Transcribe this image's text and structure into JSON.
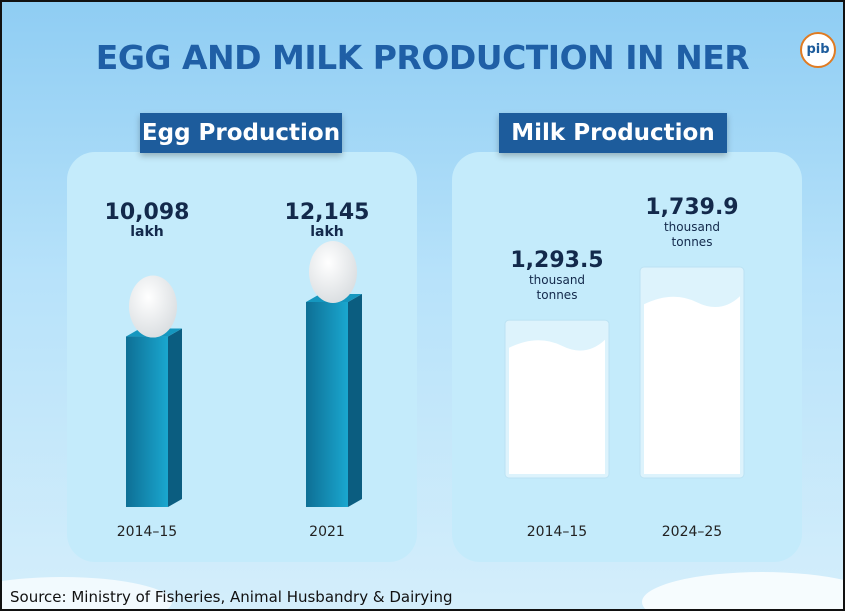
{
  "title": "EGG AND MILK PRODUCTION IN NER",
  "logo": "pib",
  "source": "Source: Ministry of Fisheries, Animal Husbandry & Dairying",
  "chart_data": [
    {
      "type": "bar",
      "title": "Egg Production",
      "categories": [
        "2014–15",
        "2021"
      ],
      "values": [
        10098,
        12145
      ],
      "value_labels": [
        "10,098",
        "12,145"
      ],
      "unit": "lakh",
      "color": "#1597bf"
    },
    {
      "type": "glass",
      "title": "Milk Production",
      "categories": [
        "2014–15",
        "2024–25"
      ],
      "values": [
        1293.5,
        1739.9
      ],
      "value_labels": [
        "1,293.5",
        "1,739.9"
      ],
      "unit": "thousand tonnes",
      "color": "#ffffff"
    }
  ]
}
